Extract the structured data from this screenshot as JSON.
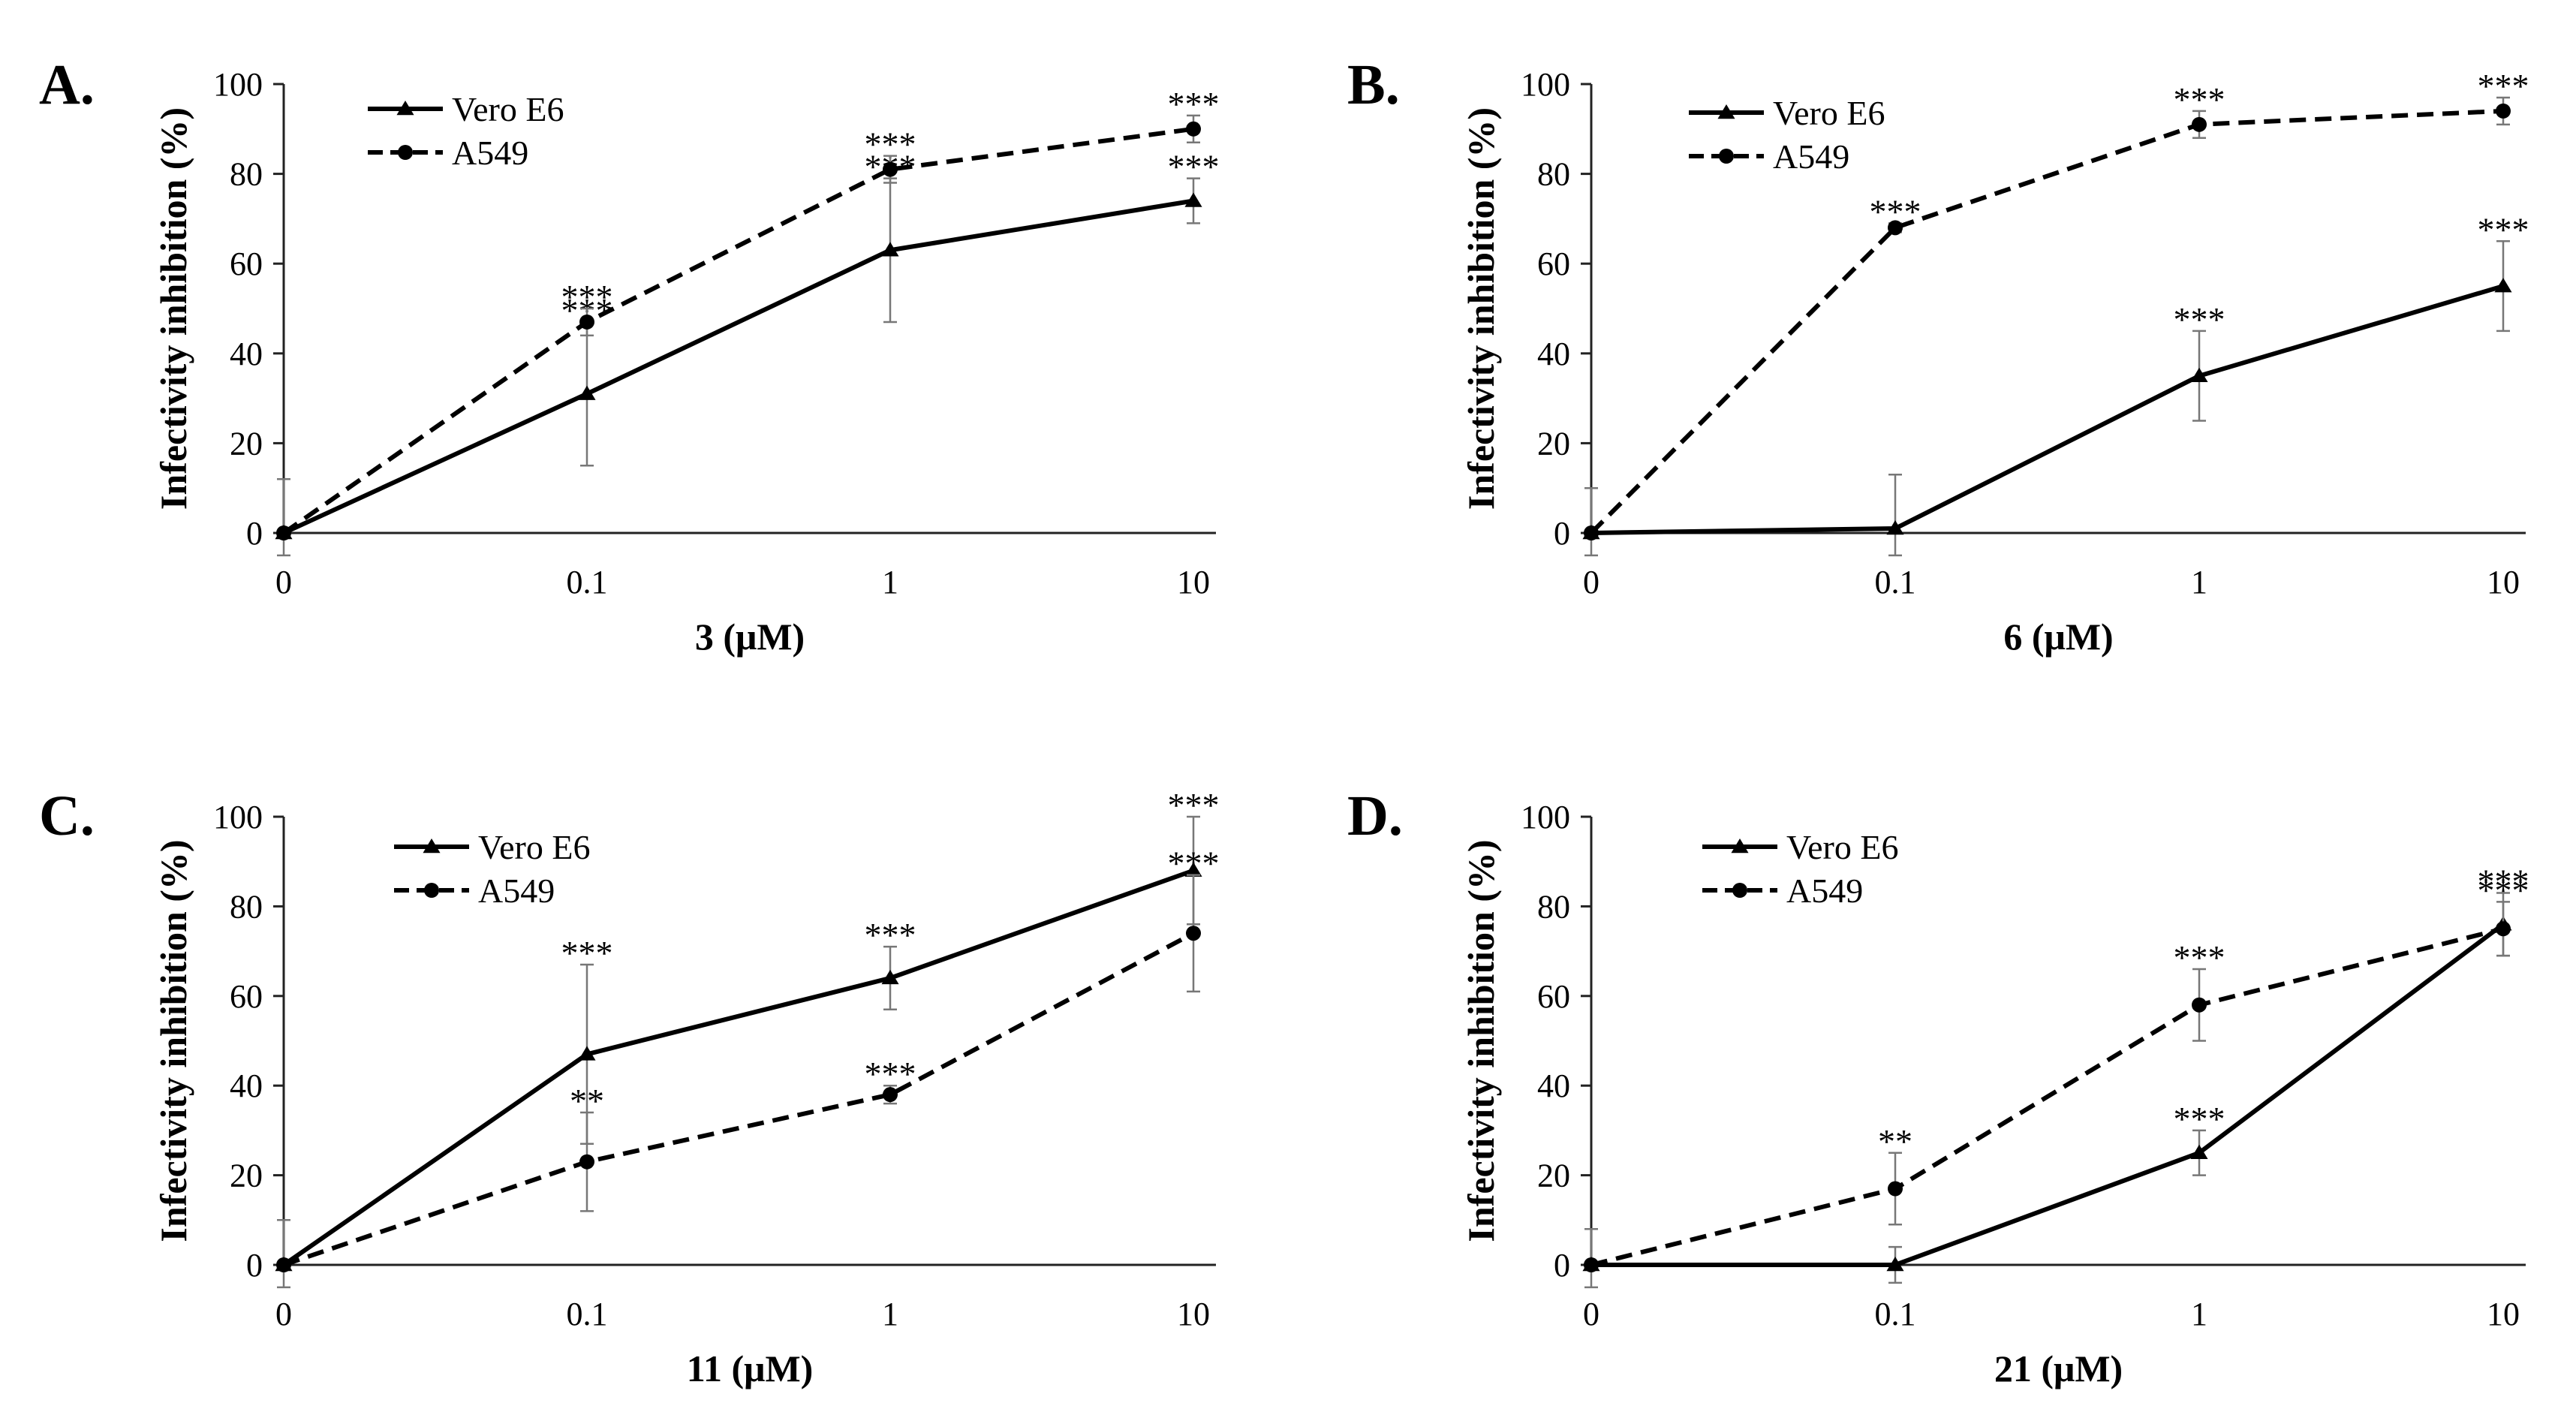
{
  "chart_data": [
    {
      "type": "line",
      "panel_label": "A.",
      "categories": [
        "0",
        "0.1",
        "1",
        "10"
      ],
      "xlabel": "3 (μM)",
      "ylabel": "Infectivity inhibition (%)",
      "ylim": [
        0,
        100
      ],
      "yticks": [
        "0",
        "20",
        "40",
        "60",
        "80",
        "100"
      ],
      "legend_position": "top-left",
      "series": [
        {
          "name": "Vero E6",
          "marker": "triangle",
          "line": "solid",
          "values": [
            0,
            31,
            63,
            74
          ],
          "errors": [
            12,
            16,
            16,
            5
          ],
          "significance": [
            "",
            "***",
            "***",
            "***"
          ]
        },
        {
          "name": "A549",
          "marker": "circle",
          "line": "dashed",
          "values": [
            0,
            47,
            81,
            90
          ],
          "errors": [
            0,
            3,
            3,
            3
          ],
          "significance": [
            "",
            "***",
            "***",
            "***"
          ]
        }
      ]
    },
    {
      "type": "line",
      "panel_label": "B.",
      "categories": [
        "0",
        "0.1",
        "1",
        "10"
      ],
      "xlabel": "6 (μM)",
      "ylabel": "Infectivity inhibition (%)",
      "ylim": [
        0,
        100
      ],
      "yticks": [
        "0",
        "20",
        "40",
        "60",
        "80",
        "100"
      ],
      "legend_position": "top-left",
      "series": [
        {
          "name": "Vero E6",
          "marker": "triangle",
          "line": "solid",
          "values": [
            0,
            1,
            35,
            55
          ],
          "errors": [
            10,
            12,
            10,
            10
          ],
          "significance": [
            "",
            "",
            "***",
            "***"
          ]
        },
        {
          "name": "A549",
          "marker": "circle",
          "line": "dashed",
          "values": [
            0,
            68,
            91,
            94
          ],
          "errors": [
            0,
            1,
            3,
            3
          ],
          "significance": [
            "",
            "***",
            "***",
            "***"
          ]
        }
      ]
    },
    {
      "type": "line",
      "panel_label": "C.",
      "categories": [
        "0",
        "0.1",
        "1",
        "10"
      ],
      "xlabel": "11 (μM)",
      "ylabel": "Infectivity inhibition (%)",
      "ylim": [
        0,
        100
      ],
      "yticks": [
        "0",
        "20",
        "40",
        "60",
        "80",
        "100"
      ],
      "legend_position": "top-left",
      "series": [
        {
          "name": "Vero E6",
          "marker": "triangle",
          "line": "solid",
          "values": [
            0,
            47,
            64,
            88
          ],
          "errors": [
            10,
            20,
            7,
            12
          ],
          "significance": [
            "",
            "***",
            "***",
            "***"
          ]
        },
        {
          "name": "A549",
          "marker": "circle",
          "line": "dashed",
          "values": [
            0,
            23,
            38,
            74
          ],
          "errors": [
            0,
            11,
            2,
            13
          ],
          "significance": [
            "",
            "**",
            "***",
            "***"
          ]
        }
      ]
    },
    {
      "type": "line",
      "panel_label": "D.",
      "categories": [
        "0",
        "0.1",
        "1",
        "10"
      ],
      "xlabel": "21 (μM)",
      "ylabel": "Infectivity inhibition (%)",
      "ylim": [
        0,
        100
      ],
      "yticks": [
        "0",
        "20",
        "40",
        "60",
        "80",
        "100"
      ],
      "legend_position": "top-left",
      "series": [
        {
          "name": "Vero E6",
          "marker": "triangle",
          "line": "solid",
          "values": [
            0,
            0,
            25,
            76
          ],
          "errors": [
            8,
            4,
            5,
            7
          ],
          "significance": [
            "",
            "",
            "***",
            "***"
          ]
        },
        {
          "name": "A549",
          "marker": "circle",
          "line": "dashed",
          "values": [
            0,
            17,
            58,
            75
          ],
          "errors": [
            0,
            8,
            8,
            6
          ],
          "significance": [
            "",
            "**",
            "***",
            "***"
          ]
        }
      ]
    }
  ]
}
